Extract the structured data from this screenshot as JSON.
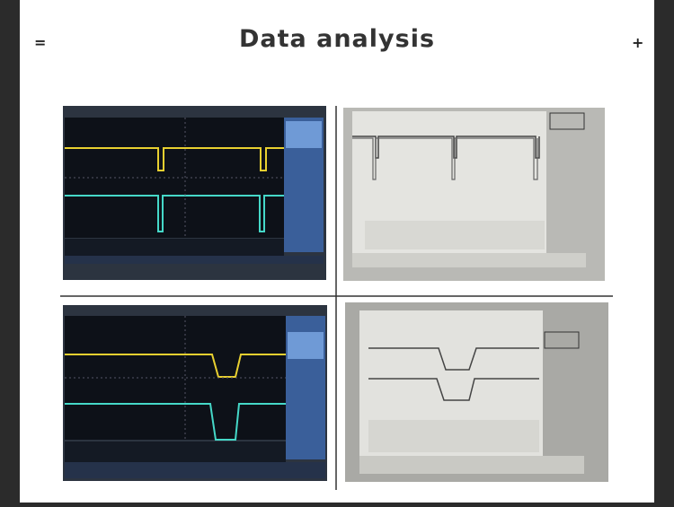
{
  "header": {
    "menu_icon": "=",
    "title": "Data analysis",
    "add_icon": "+"
  }
}
